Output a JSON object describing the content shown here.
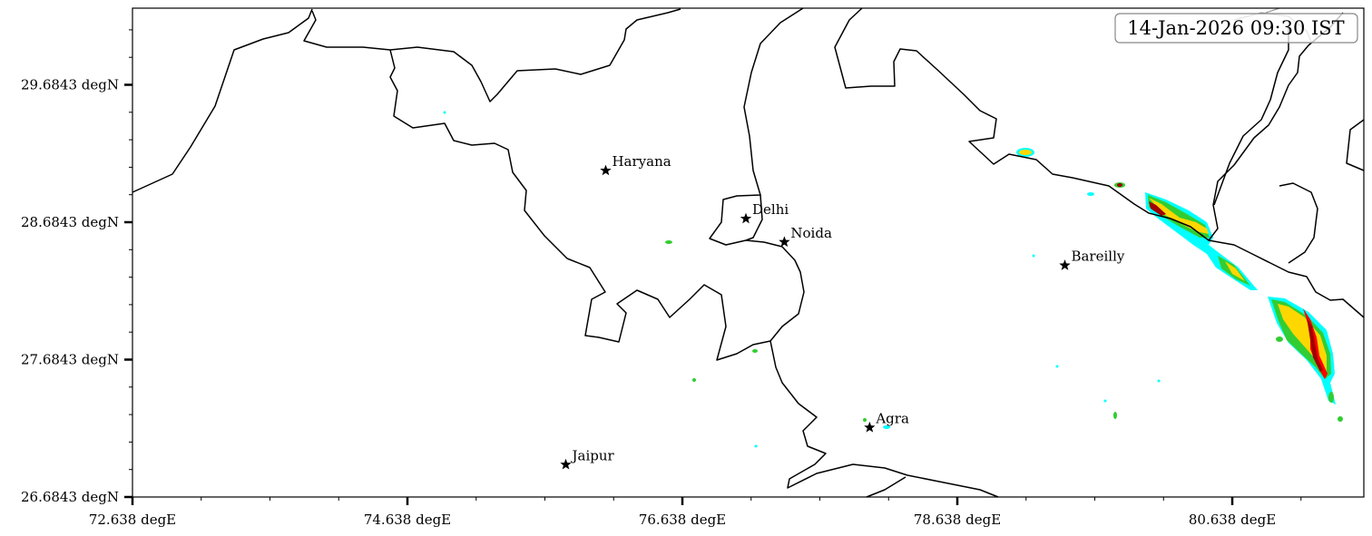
{
  "timestamp_label": "14-Jan-2026 09:30 IST",
  "chart_data": {
    "type": "map",
    "xlim": [
      72.638,
      81.595
    ],
    "ylim": [
      26.6843,
      30.242
    ],
    "x_ticks": [
      72.638,
      74.638,
      76.638,
      78.638,
      80.638
    ],
    "x_tick_labels": [
      "72.638 degE",
      "74.638 degE",
      "76.638 degE",
      "78.638 degE",
      "80.638 degE"
    ],
    "y_ticks": [
      26.6843,
      27.6843,
      28.6843,
      29.6843
    ],
    "y_tick_labels": [
      "26.6843 degN",
      "27.6843 degN",
      "28.6843 degN",
      "29.6843 degN"
    ],
    "x_minor_step": 0.5,
    "y_minor_step": 0.2,
    "grid": false,
    "cities": [
      {
        "name": "Haryana",
        "lon": 76.08,
        "lat": 29.06
      },
      {
        "name": "Delhi",
        "lon": 77.1,
        "lat": 28.71
      },
      {
        "name": "Noida",
        "lon": 77.38,
        "lat": 28.54
      },
      {
        "name": "Bareilly",
        "lon": 79.42,
        "lat": 28.37
      },
      {
        "name": "Agra",
        "lon": 78.0,
        "lat": 27.19
      },
      {
        "name": "Jaipur",
        "lon": 75.79,
        "lat": 26.92
      }
    ],
    "marker": "star",
    "precip_colors": [
      "#00ffff",
      "#32cd32",
      "#ffd700",
      "#ff0000",
      "#a00000"
    ]
  }
}
